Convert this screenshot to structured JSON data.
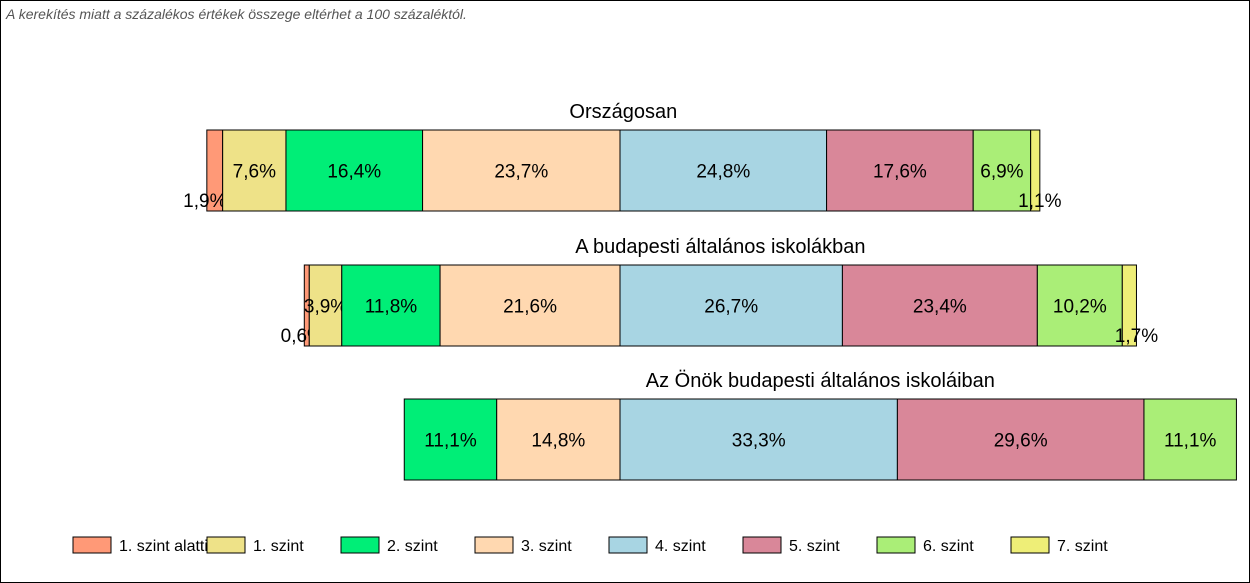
{
  "note": "A kerekítés miatt a  százalékos értékek összege eltérhet a 100 százaléktól.",
  "chart_data": {
    "type": "bar",
    "orientation": "horizontal-stacked-100",
    "categories": [
      "1. szint alatti",
      "1. szint",
      "2. szint",
      "3. szint",
      "4. szint",
      "5. szint",
      "6. szint",
      "7. szint"
    ],
    "colors": [
      "#FF9977",
      "#EEE288",
      "#00EE77",
      "#FFD8B0",
      "#A8D5E3",
      "#D98799",
      "#AAEE77",
      "#EEEE77"
    ],
    "legend_position": "bottom",
    "rows": [
      {
        "title": "Országosan",
        "values": [
          1.9,
          7.6,
          16.4,
          23.7,
          24.8,
          17.6,
          6.9,
          1.1
        ],
        "labels": [
          "1,9%",
          "7,6%",
          "16,4%",
          "23,7%",
          "24,8%",
          "17,6%",
          "6,9%",
          "1,1%"
        ]
      },
      {
        "title": "A budapesti általános iskolákban",
        "values": [
          0.6,
          3.9,
          11.8,
          21.6,
          26.7,
          23.4,
          10.2,
          1.7
        ],
        "labels": [
          "0,6%",
          "3,9%",
          "11,8%",
          "21,6%",
          "26,7%",
          "23,4%",
          "10,2%",
          "1,7%"
        ]
      },
      {
        "title": "Az Önök budapesti általános iskoláiban",
        "values": [
          0,
          0,
          11.1,
          14.8,
          33.3,
          29.6,
          11.1,
          0
        ],
        "labels": [
          "",
          "",
          "11,1%",
          "14,8%",
          "33,3%",
          "29,6%",
          "11,1%",
          ""
        ]
      }
    ]
  }
}
